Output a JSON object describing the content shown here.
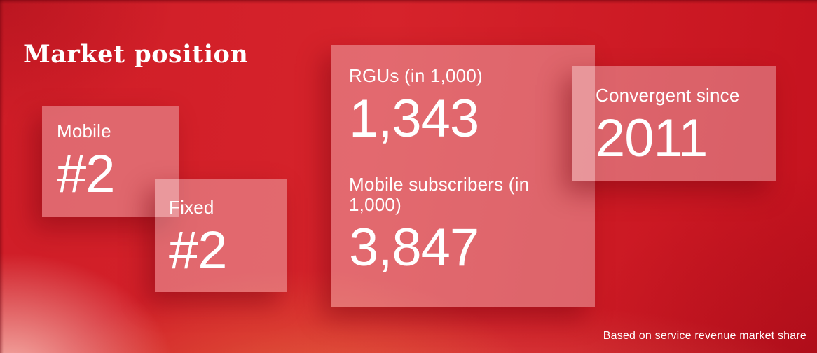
{
  "slide": {
    "title": "Market position",
    "footnote": "Based on service revenue market share"
  },
  "cards": {
    "mobile": {
      "label": "Mobile",
      "value": "#2"
    },
    "fixed": {
      "label": "Fixed",
      "value": "#2"
    },
    "kpi": {
      "rgus": {
        "label": "RGUs (in 1,000)",
        "value": "1,343"
      },
      "subscribers": {
        "label": "Mobile subscribers (in 1,000)",
        "value": "3,847"
      }
    },
    "convergent": {
      "label": "Convergent since",
      "value": "2011"
    }
  },
  "colors": {
    "background_red": "#d32028",
    "background_deep_red": "#c4121e",
    "glow_pink": "#f2a79e",
    "glow_orange": "#e06a45",
    "card_overlay": "rgba(255,255,255,0.32)",
    "text": "#ffffff"
  }
}
